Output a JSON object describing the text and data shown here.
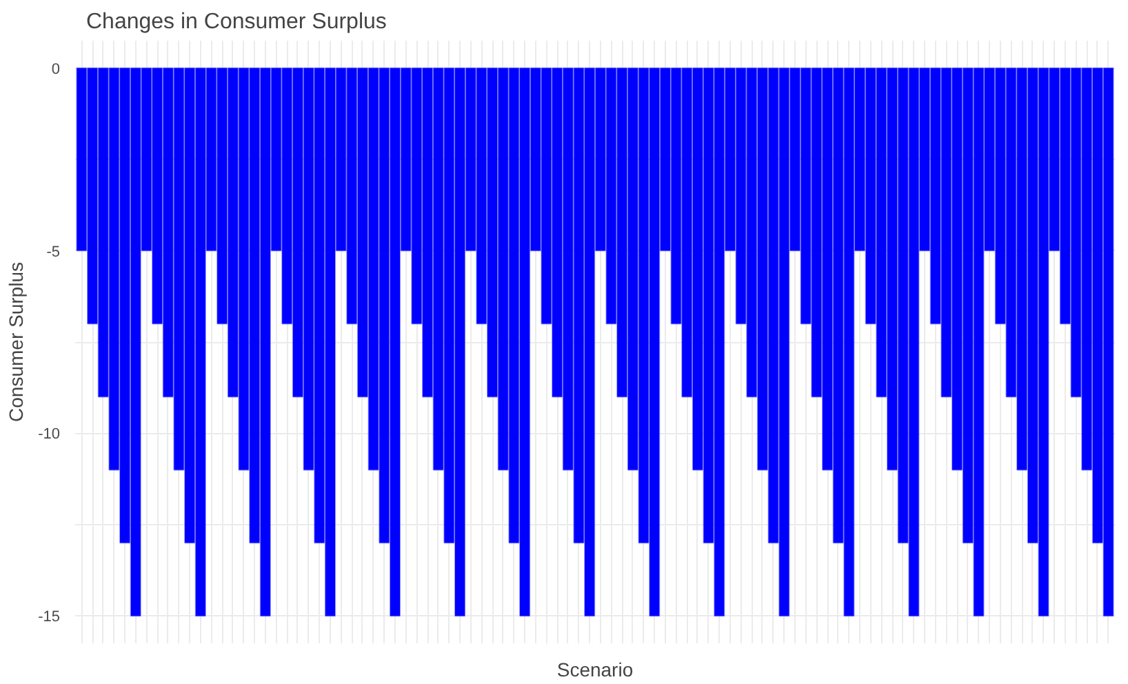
{
  "chart_data": {
    "type": "bar",
    "title": "Changes in Consumer Surplus",
    "xlabel": "Scenario",
    "ylabel": "Consumer Surplus",
    "categories": [
      null,
      null,
      null,
      null,
      null,
      null,
      null,
      null,
      null,
      null,
      null,
      null,
      null,
      null,
      null,
      null,
      null,
      null,
      null,
      null,
      null,
      null,
      null,
      null,
      null,
      null,
      null,
      null,
      null,
      null,
      null,
      null,
      null,
      null,
      null,
      null,
      null,
      null,
      null,
      null,
      null,
      null,
      null,
      null,
      null,
      null,
      null,
      null,
      null,
      null,
      null,
      null,
      null,
      null,
      null,
      null,
      null,
      null,
      null,
      null,
      null,
      null,
      null,
      null,
      null,
      null,
      null,
      null,
      null,
      null,
      null,
      null,
      null,
      null,
      null,
      null,
      null,
      null,
      null,
      null,
      null,
      null,
      null,
      null,
      null,
      null,
      null,
      null,
      null,
      null,
      null,
      null,
      null,
      null,
      null,
      null
    ],
    "values": [
      -5,
      -7,
      -9,
      -11,
      -13,
      -15,
      -5,
      -7,
      -9,
      -11,
      -13,
      -15,
      -5,
      -7,
      -9,
      -11,
      -13,
      -15,
      -5,
      -7,
      -9,
      -11,
      -13,
      -15,
      -5,
      -7,
      -9,
      -11,
      -13,
      -15,
      -5,
      -7,
      -9,
      -11,
      -13,
      -15,
      -5,
      -7,
      -9,
      -11,
      -13,
      -15,
      -5,
      -7,
      -9,
      -11,
      -13,
      -15,
      -5,
      -7,
      -9,
      -11,
      -13,
      -15,
      -5,
      -7,
      -9,
      -11,
      -13,
      -15,
      -5,
      -7,
      -9,
      -11,
      -13,
      -15,
      -5,
      -7,
      -9,
      -11,
      -13,
      -15,
      -5,
      -7,
      -9,
      -11,
      -13,
      -15,
      -5,
      -7,
      -9,
      -11,
      -13,
      -15,
      -5,
      -7,
      -9,
      -11,
      -13,
      -15,
      -5,
      -7,
      -9,
      -11,
      -13,
      -15
    ],
    "color": "#0000ff",
    "ylim": [
      -15.75,
      0.75
    ],
    "yticks": [
      -15,
      {
        "value": -12.5,
        "label": null
      },
      -10,
      {
        "value": -7.5,
        "label": null
      },
      -5,
      {
        "value": -2.5,
        "label": null
      },
      0
    ],
    "grid": true
  }
}
